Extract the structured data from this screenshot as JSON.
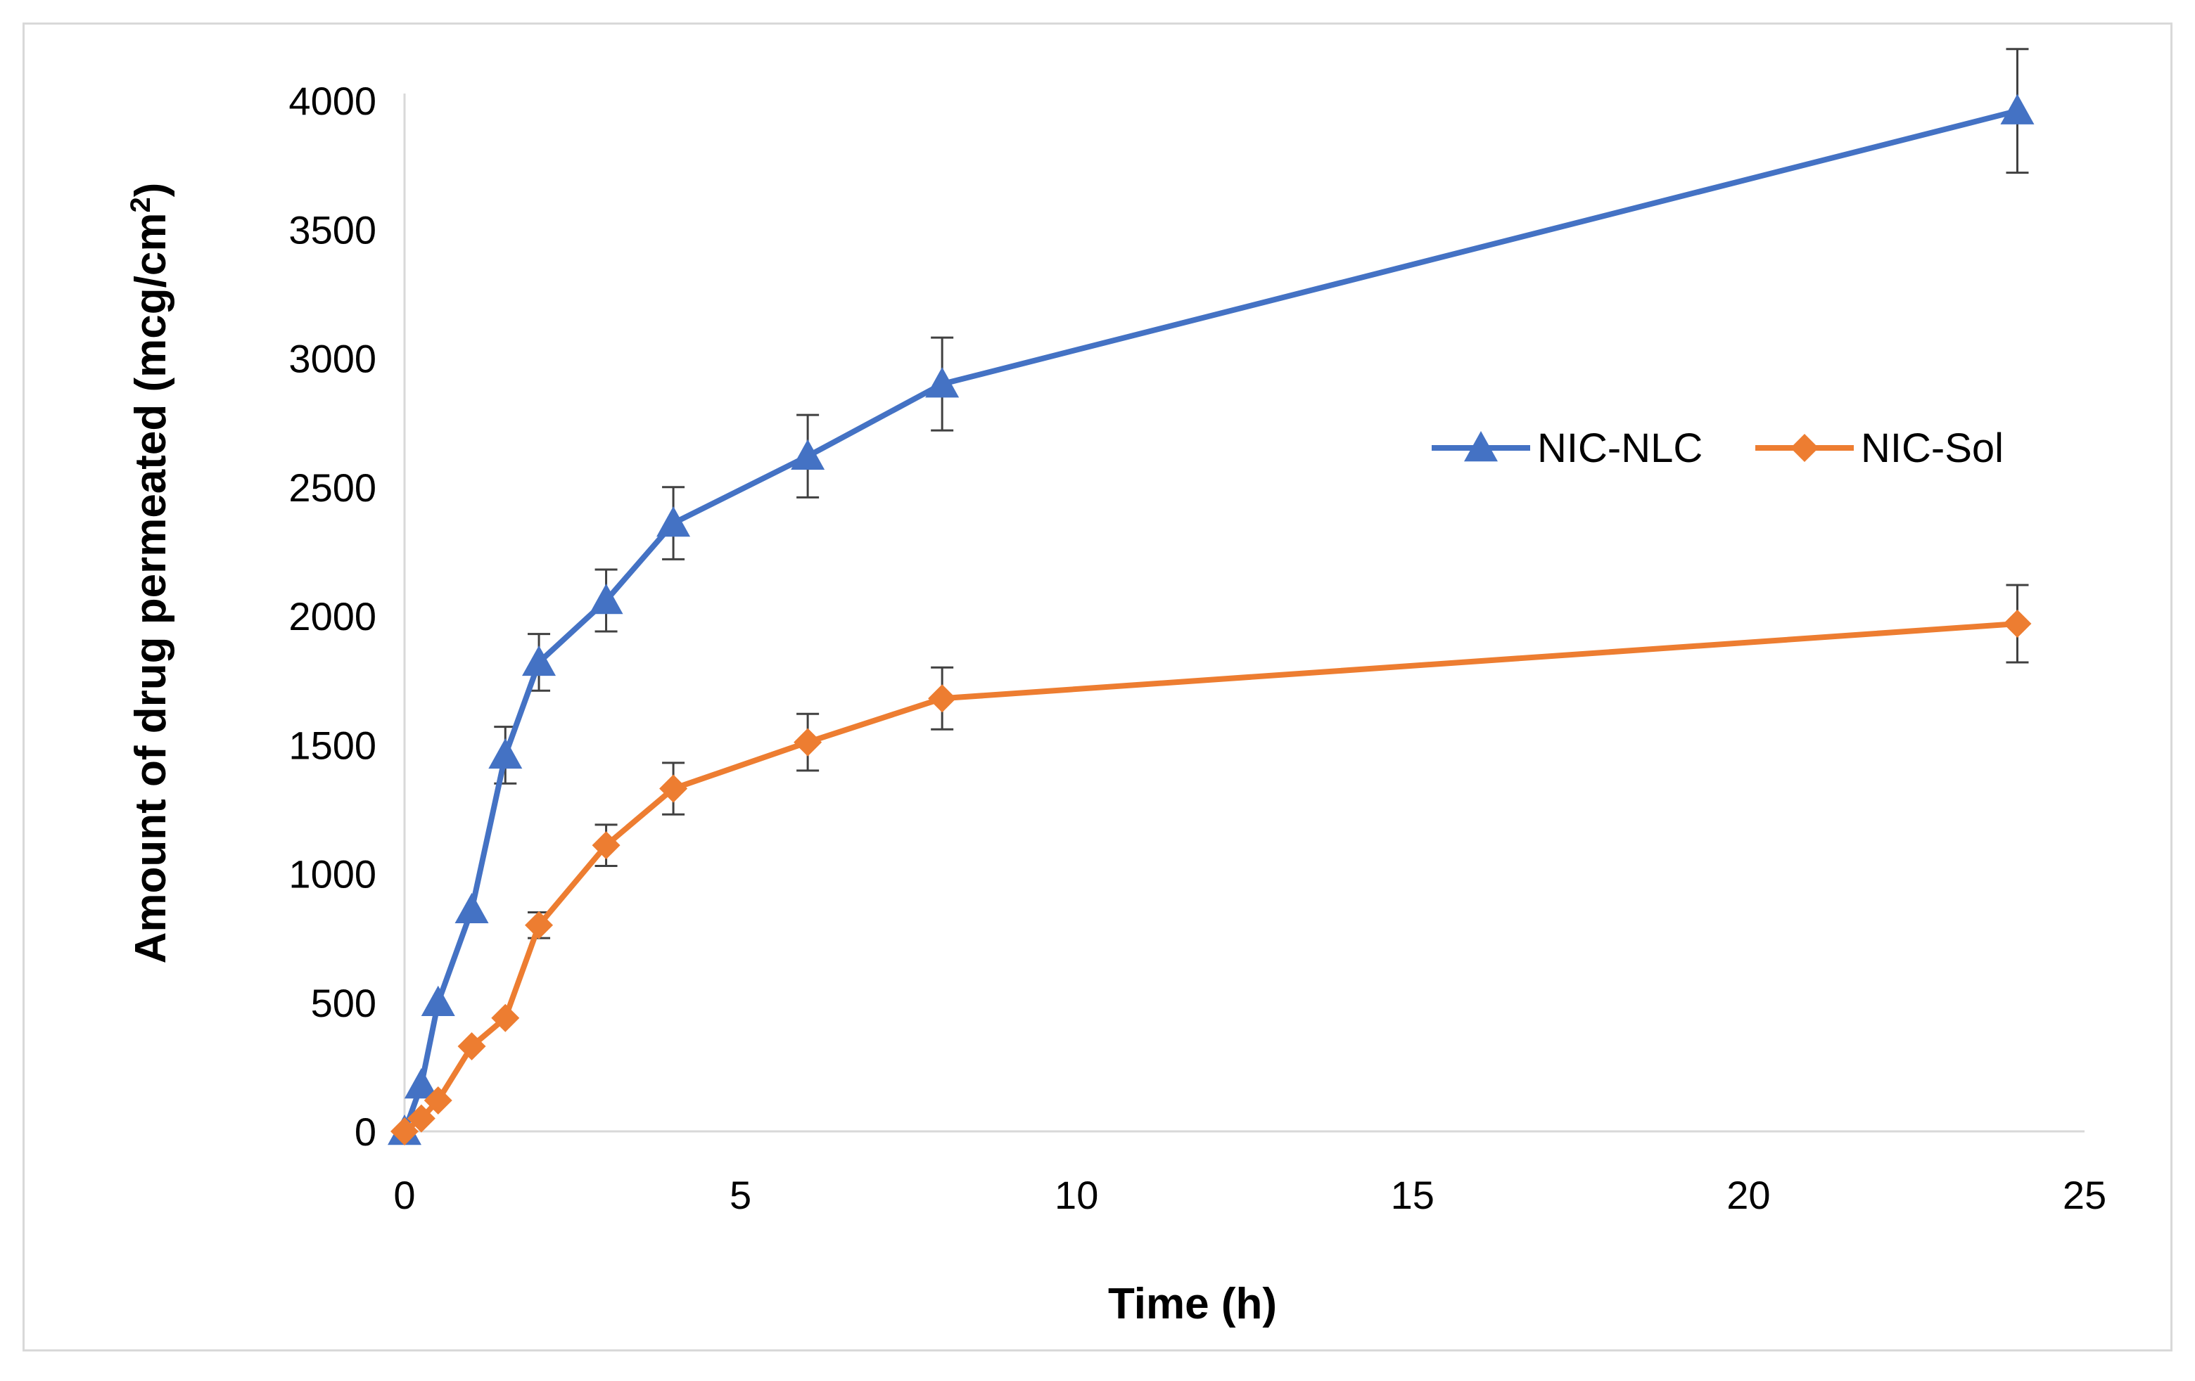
{
  "chart_data": {
    "type": "line",
    "title": "",
    "xlabel": "Time (h)",
    "ylabel_main": "Amount of drug permeated (mcg/cm",
    "ylabel_sup": "2",
    "ylabel_end": ")",
    "xlim": [
      0,
      25
    ],
    "ylim": [
      0,
      4000
    ],
    "xticks": [
      0,
      5,
      10,
      15,
      20,
      25
    ],
    "yticks": [
      0,
      500,
      1000,
      1500,
      2000,
      2500,
      3000,
      3500,
      4000
    ],
    "grid": false,
    "legend_position": "right-middle",
    "series": [
      {
        "name": "NIC-NLC",
        "color": "#4472c4",
        "marker": "triangle",
        "x": [
          0,
          0.25,
          0.5,
          1,
          1.5,
          2,
          3,
          4,
          6,
          8,
          24
        ],
        "y": [
          0,
          180,
          500,
          860,
          1460,
          1820,
          2060,
          2360,
          2620,
          2900,
          3960
        ],
        "error": [
          0,
          0,
          0,
          0,
          110,
          110,
          120,
          140,
          160,
          180,
          240
        ]
      },
      {
        "name": "NIC-Sol",
        "color": "#ed7d31",
        "marker": "diamond",
        "x": [
          0,
          0.25,
          0.5,
          1,
          1.5,
          2,
          3,
          4,
          6,
          8,
          24
        ],
        "y": [
          0,
          50,
          120,
          330,
          440,
          800,
          1110,
          1330,
          1510,
          1680,
          1970
        ],
        "error": [
          0,
          0,
          0,
          0,
          0,
          50,
          80,
          100,
          110,
          120,
          150
        ]
      }
    ]
  }
}
